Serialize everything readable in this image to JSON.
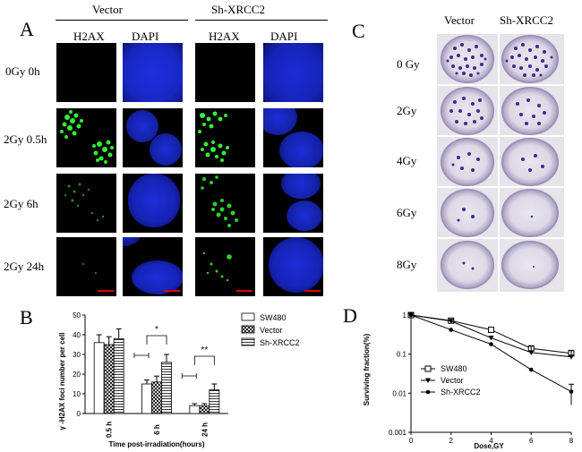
{
  "panel_a": {
    "letter": "A",
    "group_vector": "Vector",
    "group_sh": "Sh-XRCC2",
    "col_h2ax_1": "H2AX",
    "col_dapi_1": "DAPI",
    "col_h2ax_2": "H2AX",
    "col_dapi_2": "DAPI",
    "rows": [
      "0Gy  0h",
      "2Gy  0.5h",
      "2Gy  6h",
      "2Gy  24h"
    ]
  },
  "panel_c": {
    "letter": "C",
    "col_vector": "Vector",
    "col_sh": "Sh-XRCC2",
    "rows": [
      "0 Gy",
      "2Gy",
      "4Gy",
      "6Gy",
      "8Gy"
    ]
  },
  "panel_b": {
    "letter": "B",
    "chart_data": {
      "type": "bar",
      "ylabel": "γ -H2AX foci number per cell",
      "xlabel": "Time post-irradiation(hours)",
      "categories": [
        "0.5 h",
        "6 h",
        "24 h"
      ],
      "ylim": [
        0,
        50
      ],
      "yticks": [
        "0",
        "10",
        "20",
        "30",
        "40",
        "50"
      ],
      "series": [
        {
          "name": "SW480",
          "values": [
            36,
            15,
            4
          ],
          "errors": [
            4,
            2,
            1
          ]
        },
        {
          "name": "Vector",
          "values": [
            35,
            16,
            4
          ],
          "errors": [
            4,
            3,
            1
          ]
        },
        {
          "name": "Sh-XRCC2",
          "values": [
            38,
            26,
            12
          ],
          "errors": [
            5,
            4,
            3
          ]
        }
      ],
      "annotations": [
        "*",
        "**"
      ]
    }
  },
  "panel_d": {
    "letter": "D",
    "chart_data": {
      "type": "line",
      "ylabel": "Surviving fraction(%)",
      "xlabel": "Dose,GY",
      "x": [
        0,
        2,
        4,
        6,
        8
      ],
      "xticks": [
        "0",
        "2",
        "4",
        "6",
        "8"
      ],
      "yscale": "log",
      "ylim": [
        0.001,
        1
      ],
      "yticks": [
        "0.001",
        "0.01",
        "0.1",
        "1"
      ],
      "series": [
        {
          "name": "SW480",
          "values": [
            1,
            0.72,
            0.42,
            0.14,
            0.105
          ]
        },
        {
          "name": "Vector",
          "values": [
            1,
            0.7,
            0.26,
            0.11,
            0.085
          ]
        },
        {
          "name": "Sh-XRCC2",
          "values": [
            1,
            0.42,
            0.18,
            0.04,
            0.011
          ]
        }
      ]
    }
  },
  "colors": {
    "dapi": "#1a28cc",
    "foci": "#3cff3c",
    "scalebar": "#e00000",
    "stain": "#3a2a8a"
  }
}
